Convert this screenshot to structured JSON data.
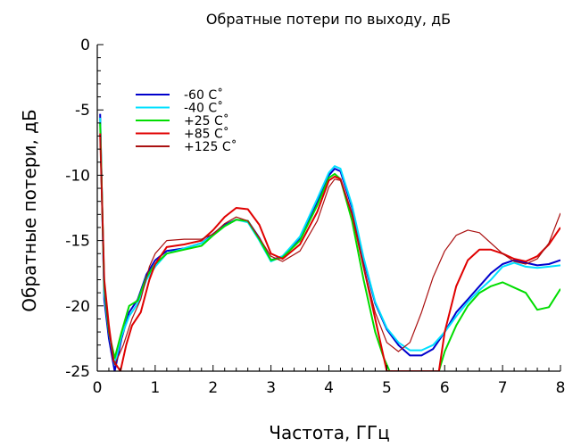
{
  "chart_data": {
    "type": "line",
    "title": "Обратные потери по выходу, дБ",
    "xlabel": "Частота, ГГц",
    "ylabel": "Обратные потери, дБ",
    "xlim": [
      0,
      8
    ],
    "ylim": [
      -25,
      0
    ],
    "x_ticks": [
      0,
      1,
      2,
      3,
      4,
      5,
      6,
      7,
      8
    ],
    "y_ticks": [
      0,
      -5,
      -10,
      -15,
      -20,
      -25
    ],
    "x_tick_labels": [
      "0",
      "1",
      "2",
      "3",
      "4",
      "5",
      "6",
      "7",
      "8"
    ],
    "y_tick_labels": [
      "0",
      "-5",
      "-10",
      "-15",
      "-20",
      "-25"
    ],
    "grid": false,
    "legend_position": "top-left",
    "series": [
      {
        "name": "-60 C˚",
        "color": "#0000cc",
        "points": [
          [
            0.05,
            -5.3
          ],
          [
            0.12,
            -19.5
          ],
          [
            0.2,
            -22.5
          ],
          [
            0.3,
            -25.0
          ],
          [
            0.42,
            -22.5
          ],
          [
            0.55,
            -20.5
          ],
          [
            0.7,
            -19.5
          ],
          [
            0.85,
            -17.6
          ],
          [
            1.0,
            -16.5
          ],
          [
            1.2,
            -15.8
          ],
          [
            1.5,
            -15.6
          ],
          [
            1.8,
            -15.2
          ],
          [
            2.0,
            -14.5
          ],
          [
            2.2,
            -13.8
          ],
          [
            2.4,
            -13.4
          ],
          [
            2.6,
            -13.5
          ],
          [
            2.8,
            -14.8
          ],
          [
            3.0,
            -16.5
          ],
          [
            3.2,
            -16.2
          ],
          [
            3.5,
            -14.8
          ],
          [
            3.8,
            -12.0
          ],
          [
            4.0,
            -10.0
          ],
          [
            4.1,
            -9.5
          ],
          [
            4.2,
            -9.7
          ],
          [
            4.4,
            -12.5
          ],
          [
            4.6,
            -16.5
          ],
          [
            4.8,
            -19.8
          ],
          [
            5.0,
            -21.8
          ],
          [
            5.2,
            -23.0
          ],
          [
            5.4,
            -23.8
          ],
          [
            5.6,
            -23.8
          ],
          [
            5.8,
            -23.3
          ],
          [
            6.0,
            -22.0
          ],
          [
            6.2,
            -20.5
          ],
          [
            6.4,
            -19.5
          ],
          [
            6.6,
            -18.5
          ],
          [
            6.8,
            -17.5
          ],
          [
            7.0,
            -16.8
          ],
          [
            7.2,
            -16.5
          ],
          [
            7.4,
            -16.7
          ],
          [
            7.6,
            -16.9
          ],
          [
            7.8,
            -16.8
          ],
          [
            8.0,
            -16.5
          ]
        ]
      },
      {
        "name": "-40 C˚",
        "color": "#00e0ff",
        "points": [
          [
            0.05,
            -5.6
          ],
          [
            0.12,
            -19.0
          ],
          [
            0.2,
            -22.0
          ],
          [
            0.3,
            -24.5
          ],
          [
            0.42,
            -22.3
          ],
          [
            0.55,
            -20.8
          ],
          [
            0.7,
            -19.8
          ],
          [
            0.85,
            -18.0
          ],
          [
            1.0,
            -17.0
          ],
          [
            1.2,
            -16.0
          ],
          [
            1.5,
            -15.6
          ],
          [
            1.8,
            -15.2
          ],
          [
            2.0,
            -14.6
          ],
          [
            2.2,
            -13.9
          ],
          [
            2.4,
            -13.4
          ],
          [
            2.6,
            -13.6
          ],
          [
            2.8,
            -15.0
          ],
          [
            3.0,
            -16.6
          ],
          [
            3.2,
            -16.2
          ],
          [
            3.5,
            -14.7
          ],
          [
            3.8,
            -11.8
          ],
          [
            4.0,
            -9.8
          ],
          [
            4.1,
            -9.3
          ],
          [
            4.2,
            -9.5
          ],
          [
            4.4,
            -12.3
          ],
          [
            4.6,
            -16.3
          ],
          [
            4.8,
            -19.7
          ],
          [
            5.0,
            -21.7
          ],
          [
            5.2,
            -22.8
          ],
          [
            5.4,
            -23.4
          ],
          [
            5.6,
            -23.4
          ],
          [
            5.8,
            -23.0
          ],
          [
            6.0,
            -22.0
          ],
          [
            6.2,
            -20.8
          ],
          [
            6.4,
            -19.7
          ],
          [
            6.6,
            -18.8
          ],
          [
            6.8,
            -18.0
          ],
          [
            7.0,
            -17.0
          ],
          [
            7.2,
            -16.7
          ],
          [
            7.4,
            -17.0
          ],
          [
            7.6,
            -17.1
          ],
          [
            7.8,
            -17.0
          ],
          [
            8.0,
            -16.9
          ]
        ]
      },
      {
        "name": "+25 C˚",
        "color": "#00dd00",
        "points": [
          [
            0.05,
            -6.0
          ],
          [
            0.12,
            -18.5
          ],
          [
            0.2,
            -22.0
          ],
          [
            0.3,
            -24.0
          ],
          [
            0.42,
            -22.0
          ],
          [
            0.55,
            -20.0
          ],
          [
            0.7,
            -19.6
          ],
          [
            0.85,
            -17.8
          ],
          [
            1.0,
            -16.8
          ],
          [
            1.2,
            -16.0
          ],
          [
            1.5,
            -15.7
          ],
          [
            1.8,
            -15.4
          ],
          [
            2.0,
            -14.6
          ],
          [
            2.2,
            -13.9
          ],
          [
            2.4,
            -13.4
          ],
          [
            2.6,
            -13.5
          ],
          [
            2.8,
            -14.9
          ],
          [
            3.0,
            -16.5
          ],
          [
            3.2,
            -16.3
          ],
          [
            3.5,
            -15.0
          ],
          [
            3.8,
            -12.3
          ],
          [
            4.0,
            -10.2
          ],
          [
            4.1,
            -9.9
          ],
          [
            4.2,
            -10.3
          ],
          [
            4.4,
            -13.5
          ],
          [
            4.6,
            -18.0
          ],
          [
            4.8,
            -22.0
          ],
          [
            4.95,
            -24.0
          ],
          [
            5.05,
            -25.0
          ],
          [
            5.9,
            -25.0
          ],
          [
            6.0,
            -23.5
          ],
          [
            6.2,
            -21.5
          ],
          [
            6.4,
            -20.0
          ],
          [
            6.6,
            -19.0
          ],
          [
            6.8,
            -18.5
          ],
          [
            7.0,
            -18.2
          ],
          [
            7.2,
            -18.6
          ],
          [
            7.4,
            -19.0
          ],
          [
            7.6,
            -20.3
          ],
          [
            7.8,
            -20.1
          ],
          [
            8.0,
            -18.7
          ]
        ]
      },
      {
        "name": "+85 C˚",
        "color": "#e00000",
        "points": [
          [
            0.05,
            -6.8
          ],
          [
            0.12,
            -18.0
          ],
          [
            0.2,
            -21.5
          ],
          [
            0.28,
            -24.2
          ],
          [
            0.4,
            -25.0
          ],
          [
            0.5,
            -23.0
          ],
          [
            0.6,
            -21.5
          ],
          [
            0.75,
            -20.5
          ],
          [
            0.9,
            -18.0
          ],
          [
            1.0,
            -16.8
          ],
          [
            1.2,
            -15.5
          ],
          [
            1.5,
            -15.3
          ],
          [
            1.8,
            -15.0
          ],
          [
            2.0,
            -14.2
          ],
          [
            2.2,
            -13.2
          ],
          [
            2.4,
            -12.5
          ],
          [
            2.6,
            -12.6
          ],
          [
            2.8,
            -13.8
          ],
          [
            3.0,
            -16.0
          ],
          [
            3.2,
            -16.4
          ],
          [
            3.5,
            -15.3
          ],
          [
            3.8,
            -12.8
          ],
          [
            4.0,
            -10.4
          ],
          [
            4.1,
            -10.1
          ],
          [
            4.2,
            -10.3
          ],
          [
            4.4,
            -13.0
          ],
          [
            4.6,
            -17.0
          ],
          [
            4.8,
            -21.0
          ],
          [
            5.0,
            -25.0
          ],
          [
            5.9,
            -25.0
          ],
          [
            6.0,
            -22.0
          ],
          [
            6.2,
            -18.5
          ],
          [
            6.4,
            -16.5
          ],
          [
            6.6,
            -15.7
          ],
          [
            6.8,
            -15.7
          ],
          [
            7.0,
            -16.0
          ],
          [
            7.2,
            -16.4
          ],
          [
            7.4,
            -16.6
          ],
          [
            7.6,
            -16.2
          ],
          [
            7.8,
            -15.3
          ],
          [
            8.0,
            -14.0
          ]
        ]
      },
      {
        "name": "+125 C˚",
        "color": "#aa1111",
        "points": [
          [
            0.05,
            -7.2
          ],
          [
            0.12,
            -18.5
          ],
          [
            0.2,
            -22.0
          ],
          [
            0.3,
            -24.5
          ],
          [
            0.45,
            -23.0
          ],
          [
            0.6,
            -21.0
          ],
          [
            0.75,
            -19.5
          ],
          [
            0.9,
            -17.0
          ],
          [
            1.0,
            -16.0
          ],
          [
            1.2,
            -15.0
          ],
          [
            1.5,
            -14.9
          ],
          [
            1.8,
            -14.9
          ],
          [
            2.0,
            -14.5
          ],
          [
            2.2,
            -13.7
          ],
          [
            2.4,
            -13.2
          ],
          [
            2.6,
            -13.5
          ],
          [
            2.8,
            -14.8
          ],
          [
            3.0,
            -16.2
          ],
          [
            3.2,
            -16.6
          ],
          [
            3.5,
            -15.8
          ],
          [
            3.8,
            -13.5
          ],
          [
            4.0,
            -10.9
          ],
          [
            4.1,
            -10.3
          ],
          [
            4.2,
            -10.4
          ],
          [
            4.4,
            -13.0
          ],
          [
            4.6,
            -17.0
          ],
          [
            4.8,
            -20.5
          ],
          [
            5.0,
            -22.8
          ],
          [
            5.2,
            -23.5
          ],
          [
            5.4,
            -22.8
          ],
          [
            5.6,
            -20.5
          ],
          [
            5.8,
            -17.8
          ],
          [
            6.0,
            -15.8
          ],
          [
            6.2,
            -14.6
          ],
          [
            6.4,
            -14.2
          ],
          [
            6.6,
            -14.4
          ],
          [
            6.8,
            -15.2
          ],
          [
            7.0,
            -16.0
          ],
          [
            7.2,
            -16.6
          ],
          [
            7.4,
            -16.8
          ],
          [
            7.6,
            -16.4
          ],
          [
            7.8,
            -15.2
          ],
          [
            8.0,
            -12.9
          ]
        ]
      }
    ]
  }
}
